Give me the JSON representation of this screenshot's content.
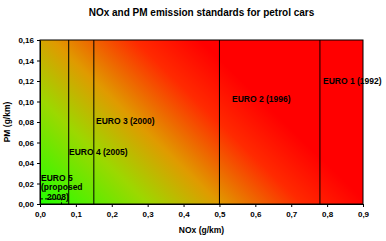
{
  "chart_data": {
    "type": "region",
    "title": "NOx and PM emission standards for petrol cars",
    "x_label": "NOx (g/km)",
    "y_label": "PM (g/km)",
    "xlim": [
      0,
      0.9
    ],
    "ylim": [
      0,
      0.16
    ],
    "xticks": [
      {
        "value": 0,
        "label": "0,0"
      },
      {
        "value": 0.1,
        "label": "0,1"
      },
      {
        "value": 0.2,
        "label": "0,2"
      },
      {
        "value": 0.3,
        "label": "0,3"
      },
      {
        "value": 0.4,
        "label": "0,4"
      },
      {
        "value": 0.5,
        "label": "0,5"
      },
      {
        "value": 0.6,
        "label": "0,6"
      },
      {
        "value": 0.7,
        "label": "0,7"
      },
      {
        "value": 0.8,
        "label": "0,8"
      },
      {
        "value": 0.9,
        "label": "0,9"
      }
    ],
    "yticks": [
      {
        "value": 0,
        "label": "0,00"
      },
      {
        "value": 0.02,
        "label": "0,02"
      },
      {
        "value": 0.04,
        "label": "0,04"
      },
      {
        "value": 0.06,
        "label": "0,06"
      },
      {
        "value": 0.08,
        "label": "0,08"
      },
      {
        "value": 0.1,
        "label": "0,10"
      },
      {
        "value": 0.12,
        "label": "0,12"
      },
      {
        "value": 0.14,
        "label": "0,14"
      },
      {
        "value": 0.16,
        "label": "0,16"
      }
    ],
    "series": [
      {
        "name": "EURO 1 (1992)",
        "nox": 0.78,
        "line_style": "solid"
      },
      {
        "name": "EURO 2 (1996)",
        "nox": 0.5,
        "line_style": "solid"
      },
      {
        "name": "EURO 3 (2000)",
        "nox": 0.15,
        "line_style": "solid"
      },
      {
        "name": "EURO 4 (2005)",
        "nox": 0.08,
        "line_style": "solid"
      },
      {
        "name": "EURO 5 (proposed 2008)",
        "nox": 0.06,
        "pm": 0.005,
        "line_style": "dashed"
      }
    ]
  }
}
